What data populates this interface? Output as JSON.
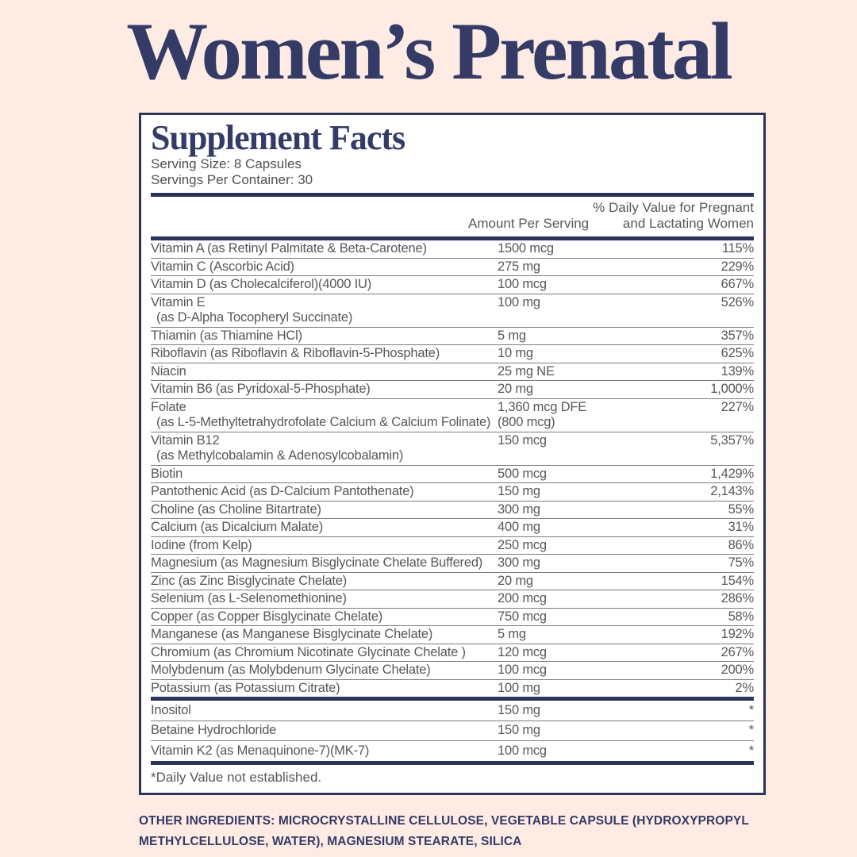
{
  "theme": {
    "background": "#fdebe4",
    "navy": "#343b66",
    "border_navy": "#2d3459",
    "text_gray": "#55585b",
    "panel_bg": "#ffffff"
  },
  "page": {
    "title": "Women’s Prenatal"
  },
  "panel": {
    "heading": "Supplement Facts",
    "serving_size": "Serving Size: 8 Capsules",
    "servings_per_container": "Servings Per Container: 30",
    "amount_header": "Amount Per Serving",
    "dv_header_line1": "% Daily Value for Pregnant",
    "dv_header_line2": "and Lactating Women",
    "footnote": "*Daily Value not established."
  },
  "table": {
    "sections": [
      {
        "rows": [
          {
            "name": "Vitamin A (as Retinyl Palmitate & Beta-Carotene)",
            "amount": "1500 mcg",
            "dv": "115%"
          },
          {
            "name": "Vitamin C (Ascorbic Acid)",
            "amount": "275 mg",
            "dv": "229%"
          },
          {
            "name": "Vitamin D (as Cholecalciferol)(4000 IU)",
            "amount": "100 mcg",
            "dv": "667%"
          },
          {
            "name": "Vitamin E",
            "name2": "(as D-Alpha Tocopheryl Succinate)",
            "amount": "100 mg",
            "dv": "526%"
          },
          {
            "name": "Thiamin (as Thiamine HCl)",
            "amount": "5 mg",
            "dv": "357%"
          },
          {
            "name": "Riboflavin (as Riboflavin & Riboflavin-5-Phosphate)",
            "amount": "10 mg",
            "dv": "625%"
          },
          {
            "name": "Niacin",
            "amount": "25 mg NE",
            "dv": "139%"
          },
          {
            "name": "Vitamin B6 (as Pyridoxal-5-Phosphate)",
            "amount": "20 mg",
            "dv": "1,000%"
          },
          {
            "name": "Folate",
            "name2": "(as L-5-Methyltetrahydrofolate Calcium & Calcium Folinate)",
            "amount": "1,360 mcg DFE",
            "amount2": "(800 mcg)",
            "dv": "227%"
          },
          {
            "name": "Vitamin B12",
            "name2": "(as Methylcobalamin & Adenosylcobalamin)",
            "amount": "150 mcg",
            "dv": "5,357%"
          },
          {
            "name": "Biotin",
            "amount": "500 mcg",
            "dv": "1,429%"
          },
          {
            "name": "Pantothenic Acid (as D-Calcium Pantothenate)",
            "amount": "150 mg",
            "dv": "2,143%"
          },
          {
            "name": "Choline (as Choline Bitartrate)",
            "amount": "300 mg",
            "dv": "55%"
          },
          {
            "name": "Calcium (as Dicalcium Malate)",
            "amount": "400 mg",
            "dv": "31%"
          },
          {
            "name": "Iodine (from Kelp)",
            "amount": "250 mcg",
            "dv": "86%"
          },
          {
            "name": "Magnesium (as Magnesium Bisglycinate Chelate Buffered)",
            "amount": "300 mg",
            "dv": "75%"
          },
          {
            "name": "Zinc (as Zinc Bisglycinate Chelate)",
            "amount": "20 mg",
            "dv": "154%"
          },
          {
            "name": "Selenium (as L-Selenomethionine)",
            "amount": "200 mcg",
            "dv": "286%"
          },
          {
            "name": "Copper (as Copper Bisglycinate Chelate)",
            "amount": "750 mcg",
            "dv": "58%"
          },
          {
            "name": "Manganese (as Manganese Bisglycinate Chelate)",
            "amount": "5 mg",
            "dv": "192%"
          },
          {
            "name": "Chromium (as Chromium Nicotinate Glycinate Chelate )",
            "amount": "120 mcg",
            "dv": "267%"
          },
          {
            "name": "Molybdenum (as Molybdenum Glycinate Chelate)",
            "amount": "100 mcg",
            "dv": "200%"
          },
          {
            "name": "Potassium (as Potassium Citrate)",
            "amount": "100 mg",
            "dv": "2%"
          }
        ]
      },
      {
        "rows": [
          {
            "name": "Inositol",
            "amount": "150 mg",
            "dv": "*"
          },
          {
            "name": "Betaine Hydrochloride",
            "amount": "150 mg",
            "dv": "*"
          },
          {
            "name": "Vitamin K2 (as Menaquinone-7)(MK-7)",
            "amount": "100 mcg",
            "dv": "*"
          }
        ]
      }
    ]
  },
  "other_ingredients": {
    "label": "OTHER INGREDIENTS:",
    "text": " MICROCRYSTALLINE CELLULOSE, VEGETABLE CAPSULE (HYDROXYPROPYL METHYLCELLULOSE, WATER), MAGNESIUM STEARATE, SILICA"
  }
}
